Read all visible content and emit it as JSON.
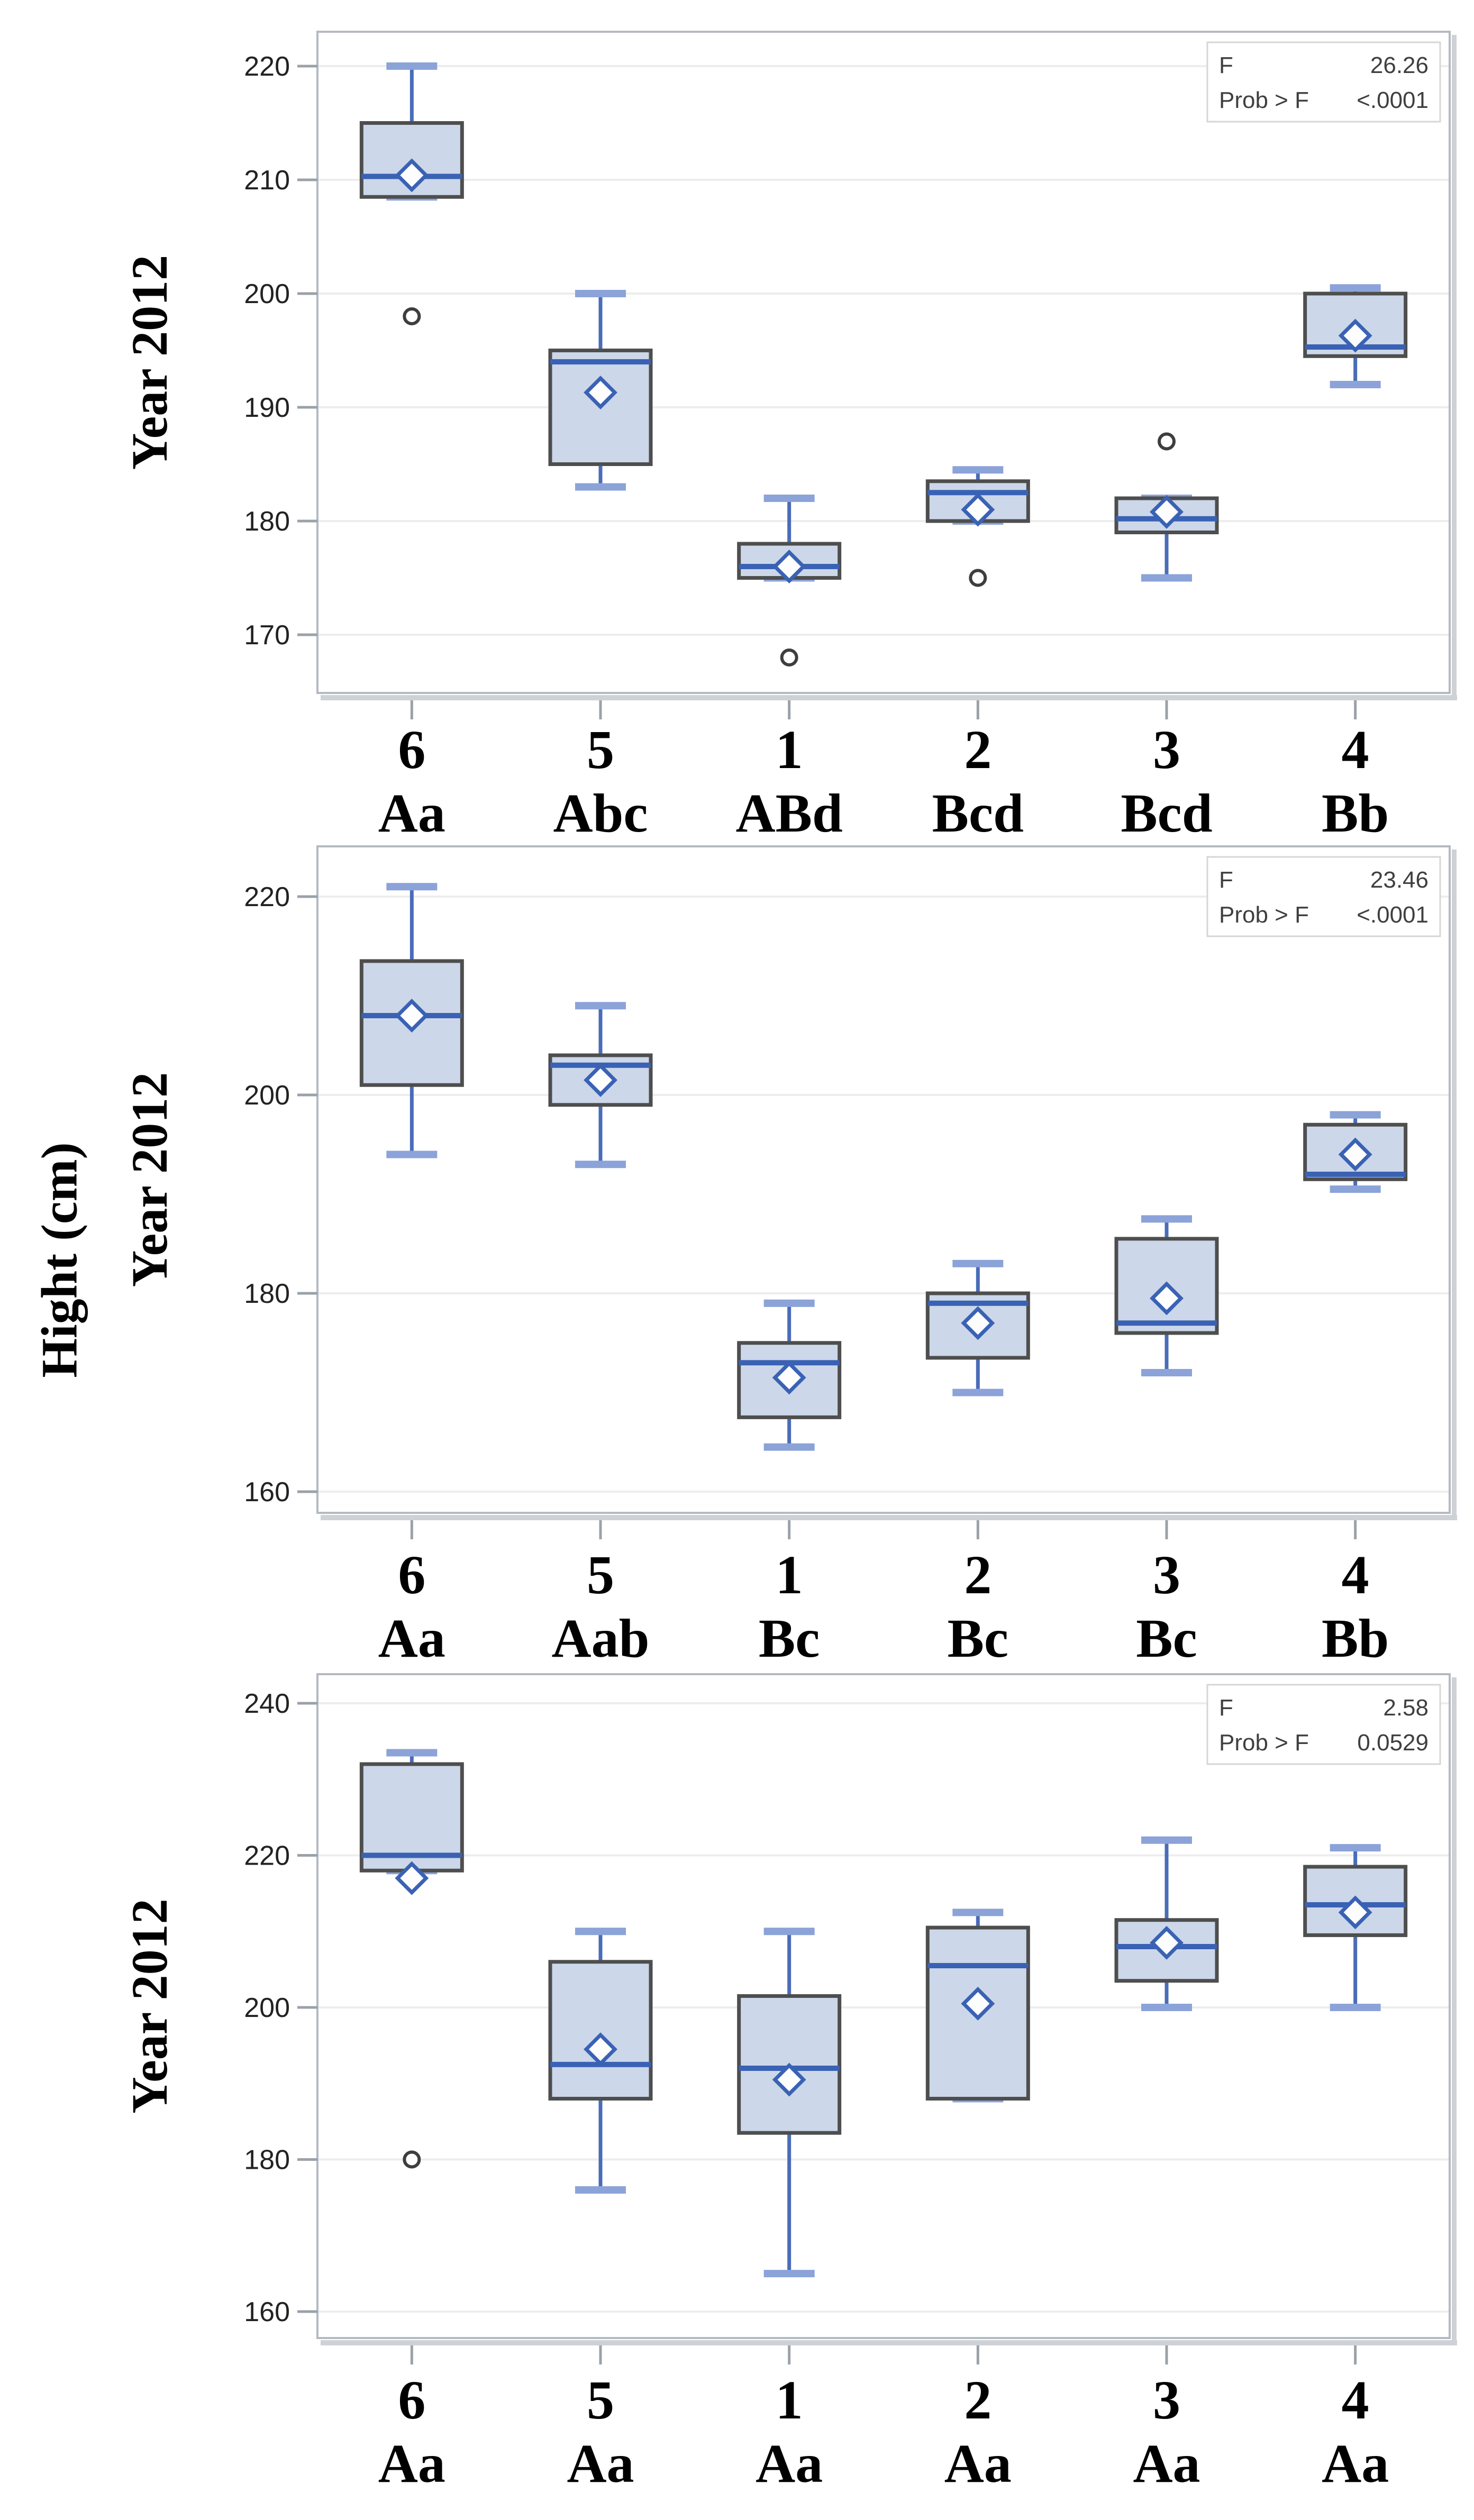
{
  "figure": {
    "y_axis_title": "Hight (cm)"
  },
  "chart_data": [
    {
      "type": "boxplot",
      "title": "",
      "xlabel": "",
      "ylabel": "Year 2012",
      "ylim": [
        165,
        223
      ],
      "y_ticks": [
        170,
        180,
        190,
        200,
        210,
        220
      ],
      "grid": true,
      "legend_position": "none",
      "stats_inset": {
        "position": "top-right",
        "f_label": "F",
        "f_value": "26.26",
        "prob_label": "Prob > F",
        "prob_value": "<.0001"
      },
      "categories": [
        "6",
        "5",
        "1",
        "2",
        "3",
        "4"
      ],
      "category_sublabels": [
        "Aa",
        "Abc",
        "ABd",
        "Bcd",
        "Bcd",
        "Bb"
      ],
      "series": [
        {
          "category": "6",
          "letter": "Aa",
          "whisker_low": 208.5,
          "q1": 208.5,
          "median": 210.3,
          "q3": 215,
          "whisker_high": 220,
          "mean": 210.4,
          "outliers": [
            198
          ]
        },
        {
          "category": "5",
          "letter": "Abc",
          "whisker_low": 183,
          "q1": 185,
          "median": 194,
          "q3": 195,
          "whisker_high": 200,
          "mean": 191.3,
          "outliers": []
        },
        {
          "category": "1",
          "letter": "ABd",
          "whisker_low": 175,
          "q1": 175,
          "median": 176,
          "q3": 178,
          "whisker_high": 182,
          "mean": 176,
          "outliers": [
            168
          ]
        },
        {
          "category": "2",
          "letter": "Bcd",
          "whisker_low": 180,
          "q1": 180,
          "median": 182.5,
          "q3": 183.5,
          "whisker_high": 184.5,
          "mean": 181,
          "outliers": [
            175
          ]
        },
        {
          "category": "3",
          "letter": "Bcd",
          "whisker_low": 175,
          "q1": 179,
          "median": 180.2,
          "q3": 182,
          "whisker_high": 182,
          "mean": 180.8,
          "outliers": [
            187
          ]
        },
        {
          "category": "4",
          "letter": "Bb",
          "whisker_low": 192,
          "q1": 194.5,
          "median": 195.3,
          "q3": 200,
          "whisker_high": 200.5,
          "mean": 196.3,
          "outliers": []
        }
      ]
    },
    {
      "type": "boxplot",
      "title": "",
      "xlabel": "",
      "ylabel": "Year 2012",
      "ylim": [
        158,
        225.6
      ],
      "y_ticks": [
        160,
        180,
        200,
        220
      ],
      "grid": true,
      "legend_position": "none",
      "stats_inset": {
        "position": "top-right",
        "f_label": "F",
        "f_value": "23.46",
        "prob_label": "Prob > F",
        "prob_value": "<.0001"
      },
      "categories": [
        "6",
        "5",
        "1",
        "2",
        "3",
        "4"
      ],
      "category_sublabels": [
        "Aa",
        "Aab",
        "Bc",
        "Bc",
        "Bc",
        "Bb"
      ],
      "series": [
        {
          "category": "6",
          "letter": "Aa",
          "whisker_low": 194,
          "q1": 201,
          "median": 208,
          "q3": 213.5,
          "whisker_high": 221,
          "mean": 208,
          "outliers": []
        },
        {
          "category": "5",
          "letter": "Aab",
          "whisker_low": 193,
          "q1": 199,
          "median": 203,
          "q3": 204,
          "whisker_high": 209,
          "mean": 201.5,
          "outliers": []
        },
        {
          "category": "1",
          "letter": "Bc",
          "whisker_low": 164.5,
          "q1": 167.5,
          "median": 173,
          "q3": 175,
          "whisker_high": 179,
          "mean": 171.5,
          "outliers": []
        },
        {
          "category": "2",
          "letter": "Bc",
          "whisker_low": 170,
          "q1": 173.5,
          "median": 179,
          "q3": 180,
          "whisker_high": 183,
          "mean": 177,
          "outliers": []
        },
        {
          "category": "3",
          "letter": "Bc",
          "whisker_low": 172,
          "q1": 176,
          "median": 177,
          "q3": 185.5,
          "whisker_high": 187.5,
          "mean": 179.5,
          "outliers": []
        },
        {
          "category": "4",
          "letter": "Bb",
          "whisker_low": 190.5,
          "q1": 191.5,
          "median": 192,
          "q3": 197,
          "whisker_high": 198,
          "mean": 194,
          "outliers": []
        }
      ]
    },
    {
      "type": "boxplot",
      "title": "",
      "xlabel": "",
      "ylabel": "Year 2012",
      "ylim": [
        156.5,
        243.8
      ],
      "y_ticks": [
        160,
        180,
        200,
        220,
        240
      ],
      "grid": true,
      "legend_position": "none",
      "stats_inset": {
        "position": "top-right",
        "f_label": "F",
        "f_value": "2.58",
        "prob_label": "Prob > F",
        "prob_value": "0.0529"
      },
      "categories": [
        "6",
        "5",
        "1",
        "2",
        "3",
        "4"
      ],
      "category_sublabels": [
        "Aa",
        "Aa",
        "Aa",
        "Aa",
        "Aa",
        "Aa"
      ],
      "series": [
        {
          "category": "6",
          "letter": "Aa",
          "whisker_low": 218,
          "q1": 218,
          "median": 220,
          "q3": 232,
          "whisker_high": 233.5,
          "mean": 217,
          "outliers": [
            180
          ]
        },
        {
          "category": "5",
          "letter": "Aa",
          "whisker_low": 176,
          "q1": 188,
          "median": 192.5,
          "q3": 206,
          "whisker_high": 210,
          "mean": 194.5,
          "outliers": []
        },
        {
          "category": "1",
          "letter": "Aa",
          "whisker_low": 165,
          "q1": 183.5,
          "median": 192,
          "q3": 201.5,
          "whisker_high": 210,
          "mean": 190.5,
          "outliers": []
        },
        {
          "category": "2",
          "letter": "Aa",
          "whisker_low": 188,
          "q1": 188,
          "median": 205.5,
          "q3": 210.5,
          "whisker_high": 212.5,
          "mean": 200.5,
          "outliers": []
        },
        {
          "category": "3",
          "letter": "Aa",
          "whisker_low": 200,
          "q1": 203.5,
          "median": 208,
          "q3": 211.5,
          "whisker_high": 222,
          "mean": 208.5,
          "outliers": []
        },
        {
          "category": "4",
          "letter": "Aa",
          "whisker_low": 200,
          "q1": 209.5,
          "median": 213.5,
          "q3": 218.5,
          "whisker_high": 221,
          "mean": 212.5,
          "outliers": []
        }
      ]
    }
  ],
  "style": {
    "box_fill": "#ccd7e9",
    "box_border": "#4e4e4e",
    "whisker_line": "#4a6cb8",
    "whisker_cap": "#8ba3d8",
    "median_line": "#3a62b4",
    "mean_marker": "#3a62b4",
    "outlier_stroke": "#3e3e3e",
    "grid_line": "#ededee",
    "frame_border": "#b4bac1",
    "frame_shadow": "#ced2d7",
    "tick_mark": "#9aa1a8",
    "tick_text": "#222222",
    "stat_text": "#3f3f3f",
    "stat_border": "#d6d6d6",
    "label_text": "#000000"
  }
}
